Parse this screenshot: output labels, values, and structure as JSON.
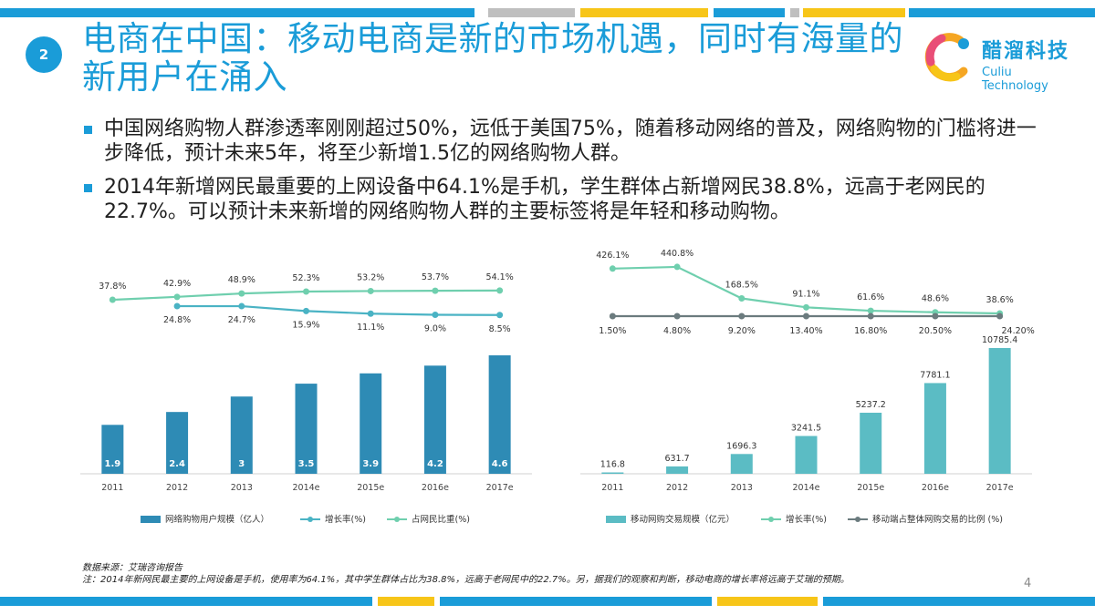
{
  "page": {
    "badge": "2",
    "title": "电商在中国：移动电商是新的市场机遇，同时有海量的新用户在涌入",
    "page_number": "4",
    "accent_color": "#1a9cd8",
    "secondary_color": "#f7c518"
  },
  "logo": {
    "name_cn": "醋溜科技",
    "name_en": "Culiu Technology"
  },
  "bullets": [
    "中国网络购物人群渗透率刚刚超过50%，远低于美国75%，随着移动网络的普及，网络购物的门槛将进一步降低，预计未来5年，将至少新增1.5亿的网络购物人群。",
    "2014年新增网民最重要的上网设备中64.1%是手机，学生群体占新增网民38.8%，远高于老网民的22.7%。可以预计未来新增的网络购物人群的主要标签将是年轻和移动购物。"
  ],
  "footer": {
    "source": "数据来源：艾瑞咨询报告",
    "note": "注：2014年新网民最主要的上网设备是手机，使用率为64.1%，其中学生群体占比为38.8%，远高于老网民中的22.7%。另，据我们的观察和判断，移动电商的增长率将远高于艾瑞的预期。"
  },
  "chart_data": [
    {
      "type": "bar",
      "categories": [
        "2011",
        "2012",
        "2013",
        "2014e",
        "2015e",
        "2016e",
        "2017e"
      ],
      "series": [
        {
          "name": "网络购物用户规模（亿人）",
          "kind": "bar",
          "color": "#2e8bb5",
          "values": [
            1.9,
            2.4,
            3,
            3.5,
            3.9,
            4.2,
            4.6
          ],
          "labels": [
            "1.9",
            "2.4",
            "3",
            "3.5",
            "3.9",
            "4.2",
            "4.6"
          ]
        },
        {
          "name": "增长率(%)",
          "kind": "line",
          "color": "#4ab3c4",
          "values": [
            null,
            24.8,
            24.7,
            15.9,
            11.1,
            9.0,
            8.5
          ],
          "labels": [
            "",
            "24.8%",
            "24.7%",
            "15.9%",
            "11.1%",
            "9.0%",
            "8.5%"
          ]
        },
        {
          "name": "占网民比重(%)",
          "kind": "line",
          "color": "#6fcfae",
          "values": [
            37.8,
            42.9,
            48.9,
            52.3,
            53.2,
            53.7,
            54.1
          ],
          "labels": [
            "37.8%",
            "42.9%",
            "48.9%",
            "52.3%",
            "53.2%",
            "53.7%",
            "54.1%"
          ]
        }
      ]
    },
    {
      "type": "bar",
      "categories": [
        "2011",
        "2012",
        "2013",
        "2014e",
        "2015e",
        "2016e",
        "2017e"
      ],
      "series": [
        {
          "name": "移动网购交易规模（亿元）",
          "kind": "bar",
          "color": "#5bbcc4",
          "values": [
            116.8,
            631.7,
            1696.3,
            3241.5,
            5237.2,
            7781.1,
            10785.4
          ],
          "labels": [
            "116.8",
            "631.7",
            "1696.3",
            "3241.5",
            "5237.2",
            "7781.1",
            "10785.4"
          ]
        },
        {
          "name": "增长率(%)",
          "kind": "line",
          "color": "#6fcfae",
          "values": [
            426.1,
            440.8,
            168.5,
            91.1,
            61.6,
            48.6,
            38.6
          ],
          "labels": [
            "426.1%",
            "440.8%",
            "168.5%",
            "91.1%",
            "61.6%",
            "48.6%",
            "38.6%"
          ]
        },
        {
          "name": "移动端占整体网购交易的比例 (%)",
          "kind": "line",
          "color": "#6b7b7e",
          "values": [
            1.5,
            4.8,
            9.2,
            13.4,
            16.8,
            20.5,
            24.2
          ],
          "labels": [
            "1.50%",
            "4.80%",
            "9.20%",
            "13.40%",
            "16.80%",
            "20.50%",
            "24.20%"
          ]
        }
      ]
    }
  ]
}
